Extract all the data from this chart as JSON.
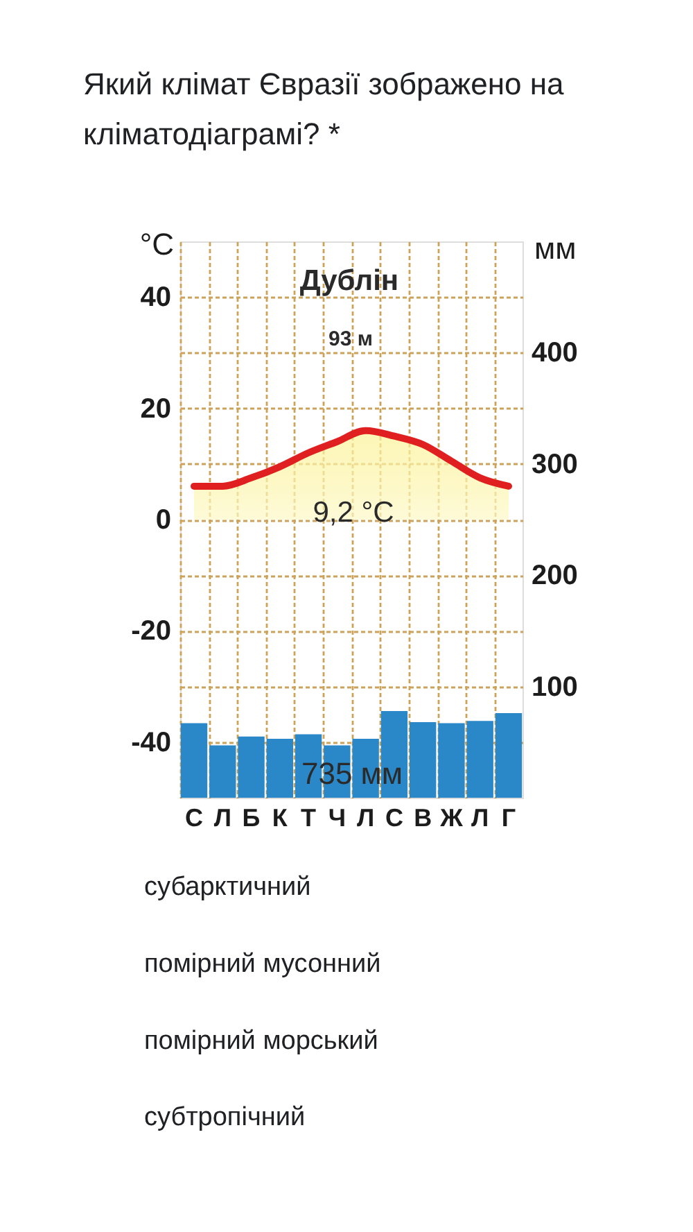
{
  "chart_data": {
    "type": "bar",
    "title": "Який клімат Євразії зображено на кліматодіаграмі? *",
    "ylabel": "°C",
    "y2label": "мм",
    "categories": [
      "С",
      "Л",
      "Б",
      "К",
      "Т",
      "Ч",
      "Л",
      "С",
      "В",
      "Ж",
      "Л",
      "Г"
    ],
    "series": [
      {
        "type": "area",
        "color": "#e02020",
        "values": [
          6,
          6,
          7.5,
          9.5,
          12,
          14,
          16,
          15,
          13.5,
          10.5,
          7.5,
          6
        ]
      },
      {
        "axis": "y2",
        "color": "#2b88c8",
        "values": [
          67,
          47,
          55,
          53,
          57,
          47,
          53,
          78,
          68,
          67,
          69,
          76
        ]
      }
    ],
    "ylim": [
      -50,
      50
    ],
    "yticks": [
      -40,
      {
        "value": -30,
        "label": null
      },
      -20,
      {
        "value": -10,
        "label": null
      },
      0,
      {
        "value": 10,
        "label": null
      },
      20,
      {
        "value": 30,
        "label": null
      },
      40
    ],
    "y2lim": [
      0,
      500
    ],
    "y2ticks": [
      100,
      200,
      300,
      400
    ],
    "grid": true,
    "annotations": [
      "Дублін",
      "93 м",
      "9,2 °C",
      "735 мм",
      "субарктичний",
      "помірний мусонний",
      "помірний морський",
      "субтропічний"
    ]
  }
}
